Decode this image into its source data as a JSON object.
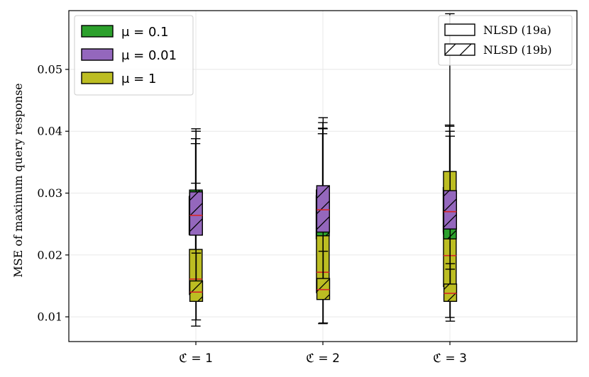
{
  "chart_data": {
    "type": "box",
    "ylabel": "MSE of maximum query response",
    "ylim": [
      0.006,
      0.0595
    ],
    "xlim": [
      0.0,
      4.0
    ],
    "yticks": [
      0.01,
      0.02,
      0.03,
      0.04,
      0.05
    ],
    "ytick_labels": [
      "0.01",
      "0.02",
      "0.03",
      "0.04",
      "0.05"
    ],
    "categories": [
      "ℭ = 1",
      "ℭ = 2",
      "ℭ = 3"
    ],
    "grid": true,
    "colors": {
      "mu_0_1": "#2ca02c",
      "mu_0_01": "#9467bd",
      "mu_1": "#bcbd22",
      "median": "#d62728",
      "grid": "#e8e8e8"
    },
    "legend_mu": {
      "placement": "top-left",
      "entries": [
        {
          "label": "μ = 0.1",
          "color": "#2ca02c"
        },
        {
          "label": "μ = 0.01",
          "color": "#9467bd"
        },
        {
          "label": "μ = 1",
          "color": "#bcbd22"
        }
      ]
    },
    "legend_method": {
      "placement": "top-right",
      "entries": [
        {
          "label": "NLSD (19a)",
          "hatch": false
        },
        {
          "label": "NLSD (19b)",
          "hatch": true
        }
      ]
    },
    "boxes": [
      {
        "group": 0,
        "mu": "mu_0_1",
        "method": "19a",
        "whislo": 0.0168,
        "q1": 0.0233,
        "med": 0.0263,
        "q3": 0.0294,
        "whishi": 0.038
      },
      {
        "group": 0,
        "mu": "mu_0_01",
        "method": "19a",
        "whislo": 0.0156,
        "q1": 0.0233,
        "med": 0.0265,
        "q3": 0.0295,
        "whishi": 0.0388
      },
      {
        "group": 0,
        "mu": "mu_1",
        "method": "19a",
        "whislo": 0.0085,
        "q1": 0.0136,
        "med": 0.0161,
        "q3": 0.0209,
        "whishi": 0.0316
      },
      {
        "group": 0,
        "mu": "mu_0_1",
        "method": "19b",
        "whislo": 0.0143,
        "q1": 0.0235,
        "med": 0.0266,
        "q3": 0.0305,
        "whishi": 0.0404
      },
      {
        "group": 0,
        "mu": "mu_0_01",
        "method": "19b",
        "whislo": 0.0156,
        "q1": 0.0232,
        "med": 0.0264,
        "q3": 0.0302,
        "whishi": 0.04
      },
      {
        "group": 0,
        "mu": "mu_1",
        "method": "19b",
        "whislo": 0.0095,
        "q1": 0.0125,
        "med": 0.014,
        "q3": 0.0158,
        "whishi": 0.0203
      },
      {
        "group": 1,
        "mu": "mu_0_1",
        "method": "19a",
        "whislo": 0.0147,
        "q1": 0.0226,
        "med": 0.0259,
        "q3": 0.0296,
        "whishi": 0.0396
      },
      {
        "group": 1,
        "mu": "mu_0_01",
        "method": "19a",
        "whislo": 0.0148,
        "q1": 0.0236,
        "med": 0.0267,
        "q3": 0.0305,
        "whishi": 0.0405
      },
      {
        "group": 1,
        "mu": "mu_1",
        "method": "19a",
        "whislo": 0.0089,
        "q1": 0.0139,
        "med": 0.0172,
        "q3": 0.0259,
        "whishi": 0.0414
      },
      {
        "group": 1,
        "mu": "mu_0_1",
        "method": "19b",
        "whislo": 0.0148,
        "q1": 0.0231,
        "med": 0.0265,
        "q3": 0.0302,
        "whishi": 0.0404
      },
      {
        "group": 1,
        "mu": "mu_0_01",
        "method": "19b",
        "whislo": 0.0154,
        "q1": 0.0237,
        "med": 0.0273,
        "q3": 0.0312,
        "whishi": 0.0422
      },
      {
        "group": 1,
        "mu": "mu_1",
        "method": "19b",
        "whislo": 0.009,
        "q1": 0.0128,
        "med": 0.0144,
        "q3": 0.0162,
        "whishi": 0.0206
      },
      {
        "group": 2,
        "mu": "mu_0_1",
        "method": "19a",
        "whislo": 0.0174,
        "q1": 0.0237,
        "med": 0.0272,
        "q3": 0.0309,
        "whishi": 0.041
      },
      {
        "group": 2,
        "mu": "mu_0_01",
        "method": "19a",
        "whislo": 0.0148,
        "q1": 0.0234,
        "med": 0.0264,
        "q3": 0.0305,
        "whishi": 0.0408
      },
      {
        "group": 2,
        "mu": "mu_1",
        "method": "19a",
        "whislo": 0.0099,
        "q1": 0.0149,
        "med": 0.0199,
        "q3": 0.0335,
        "whishi": 0.059
      },
      {
        "group": 2,
        "mu": "mu_0_1",
        "method": "19b",
        "whislo": 0.015,
        "q1": 0.0226,
        "med": 0.0263,
        "q3": 0.0302,
        "whishi": 0.04
      },
      {
        "group": 2,
        "mu": "mu_0_01",
        "method": "19b",
        "whislo": 0.0177,
        "q1": 0.0242,
        "med": 0.027,
        "q3": 0.0304,
        "whishi": 0.0392
      },
      {
        "group": 2,
        "mu": "mu_1",
        "method": "19b",
        "whislo": 0.0093,
        "q1": 0.0125,
        "med": 0.0138,
        "q3": 0.0153,
        "whishi": 0.0186
      }
    ]
  }
}
